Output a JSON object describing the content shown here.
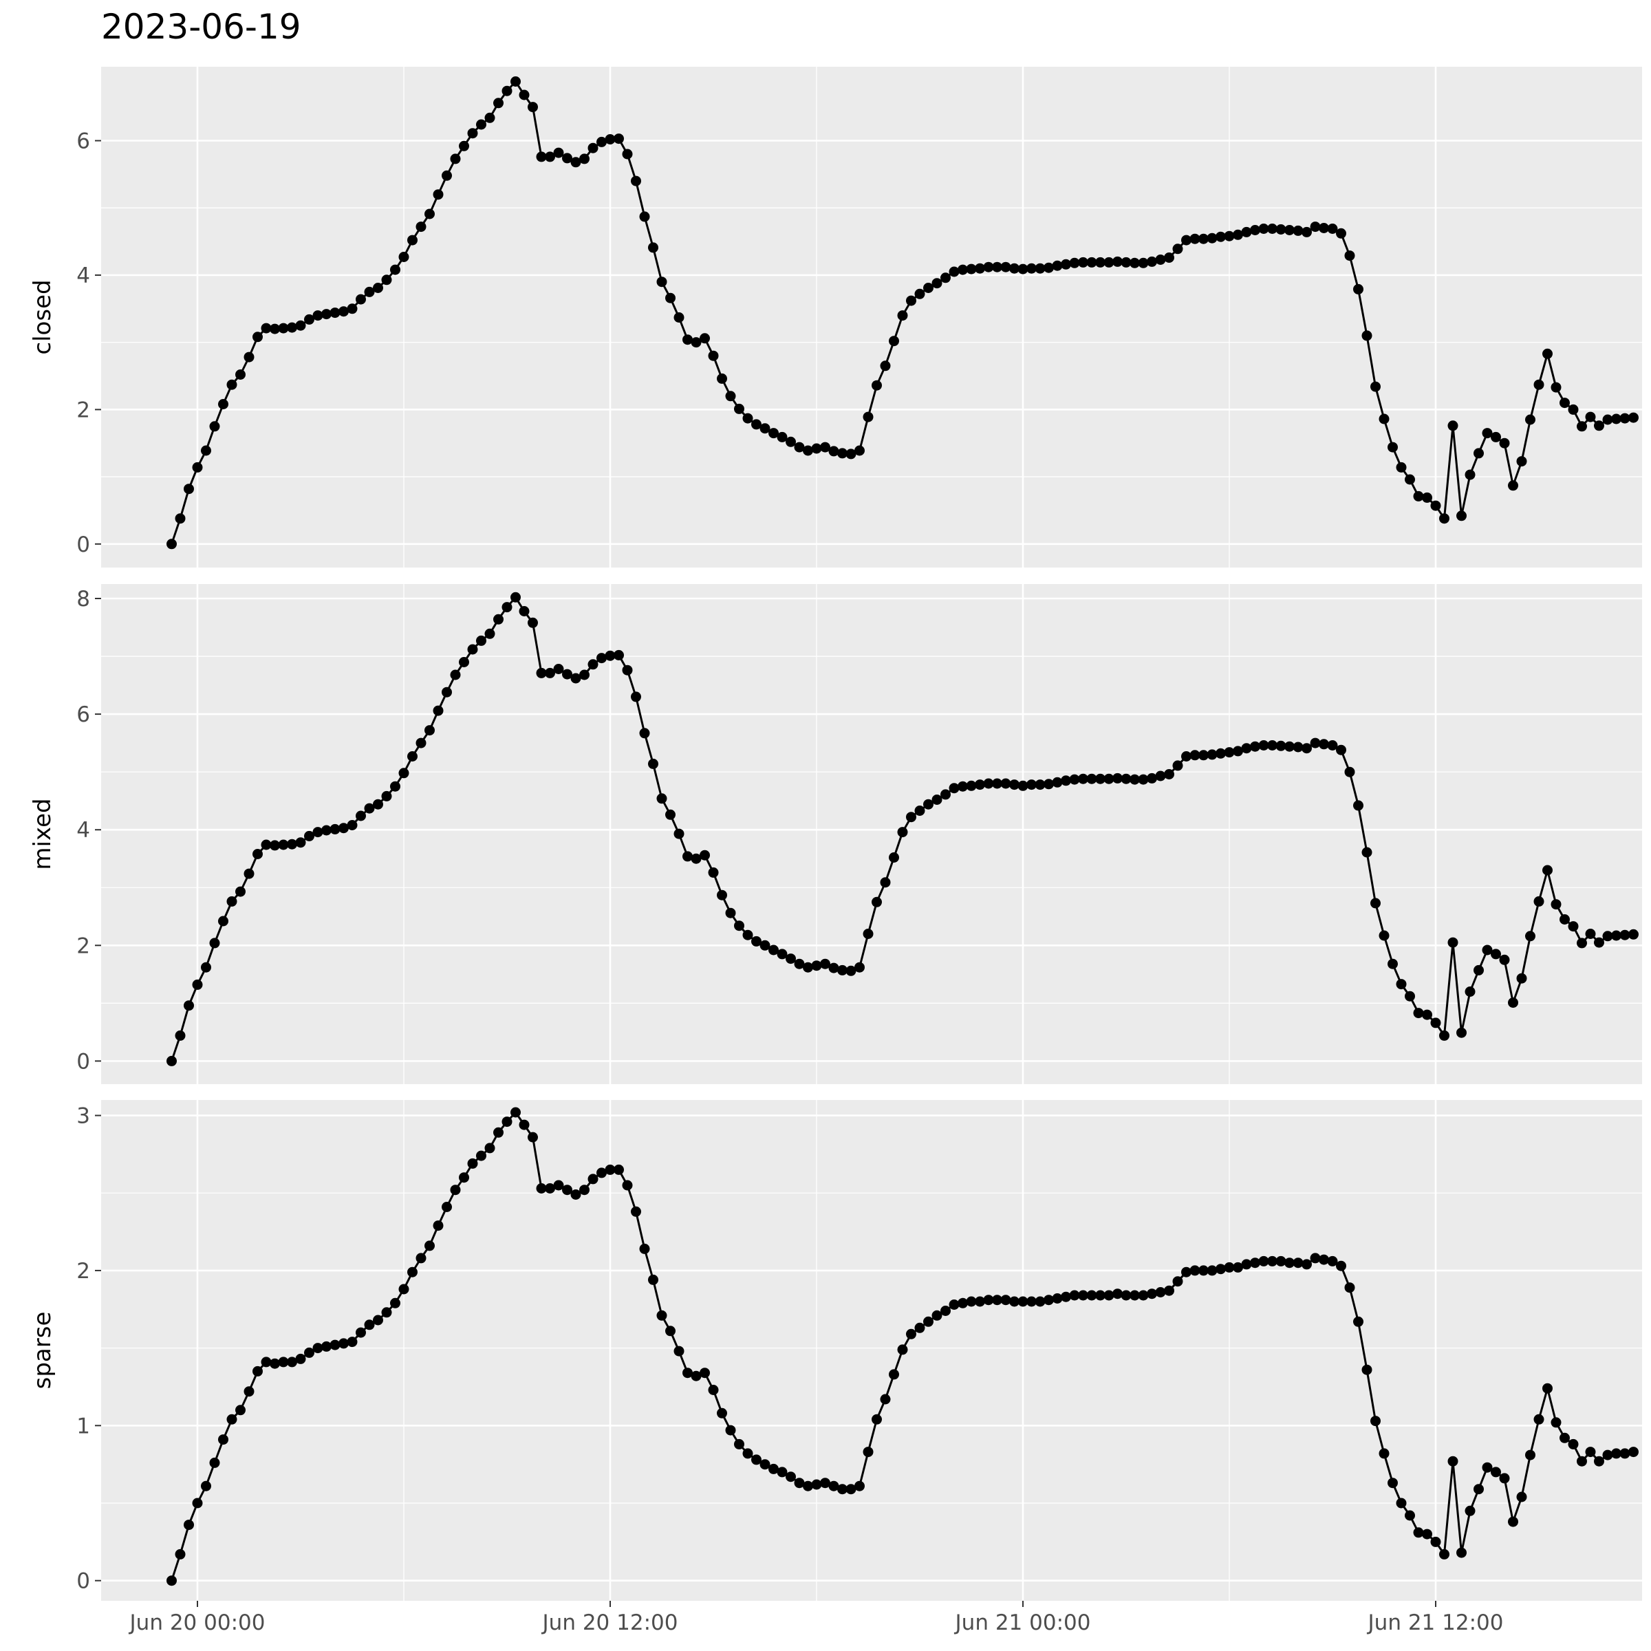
{
  "title": "2023-06-19",
  "chart_data": {
    "type": "line",
    "title": "2023-06-19",
    "xlabel": "",
    "x_tick_labels": [
      "Jun 20 00:00",
      "Jun 20 12:00",
      "Jun 21 00:00",
      "Jun 21 12:00"
    ],
    "x_ticks_hours": [
      0,
      12,
      24,
      36
    ],
    "x_start": "2023-06-19 23:15",
    "x_step_minutes": 15,
    "x_range_hours": [
      -2.8,
      42.0
    ],
    "markers": true,
    "line_color": "#000000",
    "panel_background": "#ebebeb",
    "grid": true,
    "panels": [
      {
        "ylabel": "closed",
        "ylim": [
          -0.35,
          7.1
        ],
        "yticks": [
          0,
          2,
          4,
          6
        ],
        "values": [
          0.0,
          0.38,
          0.82,
          1.14,
          1.39,
          1.75,
          2.08,
          2.37,
          2.52,
          2.78,
          3.08,
          3.21,
          3.2,
          3.21,
          3.22,
          3.25,
          3.34,
          3.4,
          3.42,
          3.44,
          3.46,
          3.5,
          3.64,
          3.75,
          3.81,
          3.93,
          4.08,
          4.27,
          4.52,
          4.72,
          4.91,
          5.2,
          5.48,
          5.73,
          5.92,
          6.11,
          6.24,
          6.34,
          6.56,
          6.74,
          6.88,
          6.68,
          6.5,
          5.76,
          5.76,
          5.82,
          5.74,
          5.68,
          5.73,
          5.89,
          5.98,
          6.02,
          6.03,
          5.8,
          5.4,
          4.87,
          4.41,
          3.9,
          3.66,
          3.37,
          3.04,
          3.0,
          3.06,
          2.8,
          2.46,
          2.2,
          2.01,
          1.87,
          1.78,
          1.72,
          1.65,
          1.59,
          1.52,
          1.44,
          1.39,
          1.42,
          1.44,
          1.38,
          1.35,
          1.34,
          1.39,
          1.89,
          2.36,
          2.65,
          3.02,
          3.4,
          3.62,
          3.72,
          3.81,
          3.88,
          3.96,
          4.05,
          4.08,
          4.09,
          4.1,
          4.12,
          4.12,
          4.12,
          4.1,
          4.09,
          4.1,
          4.1,
          4.11,
          4.14,
          4.16,
          4.18,
          4.19,
          4.19,
          4.19,
          4.19,
          4.2,
          4.19,
          4.18,
          4.18,
          4.2,
          4.23,
          4.26,
          4.39,
          4.52,
          4.54,
          4.54,
          4.55,
          4.57,
          4.58,
          4.6,
          4.64,
          4.67,
          4.69,
          4.69,
          4.68,
          4.67,
          4.66,
          4.64,
          4.72,
          4.7,
          4.69,
          4.62,
          4.29,
          3.79,
          3.1,
          2.34,
          1.86,
          1.44,
          1.14,
          0.96,
          0.71,
          0.69,
          0.57,
          0.38,
          1.76,
          0.42,
          1.03,
          1.35,
          1.65,
          1.59,
          1.5,
          0.87,
          1.23,
          1.85,
          2.37,
          2.83,
          2.33,
          2.1,
          2.0,
          1.75,
          1.89,
          1.76,
          1.85,
          1.86,
          1.87,
          1.88
        ]
      },
      {
        "ylabel": "mixed",
        "ylim": [
          -0.4,
          8.25
        ],
        "yticks": [
          0,
          2,
          4,
          6,
          8
        ],
        "values": [
          0.0,
          0.44,
          0.96,
          1.32,
          1.62,
          2.04,
          2.42,
          2.76,
          2.93,
          3.24,
          3.58,
          3.74,
          3.73,
          3.74,
          3.75,
          3.78,
          3.89,
          3.96,
          3.99,
          4.01,
          4.03,
          4.08,
          4.24,
          4.37,
          4.44,
          4.58,
          4.75,
          4.98,
          5.27,
          5.5,
          5.72,
          6.06,
          6.38,
          6.68,
          6.9,
          7.12,
          7.27,
          7.39,
          7.64,
          7.85,
          8.02,
          7.78,
          7.58,
          6.71,
          6.71,
          6.78,
          6.69,
          6.62,
          6.68,
          6.86,
          6.97,
          7.01,
          7.02,
          6.76,
          6.3,
          5.67,
          5.14,
          4.54,
          4.26,
          3.93,
          3.54,
          3.5,
          3.56,
          3.26,
          2.87,
          2.56,
          2.34,
          2.18,
          2.07,
          2.0,
          1.92,
          1.85,
          1.77,
          1.68,
          1.62,
          1.65,
          1.68,
          1.61,
          1.57,
          1.56,
          1.62,
          2.2,
          2.75,
          3.09,
          3.52,
          3.96,
          4.22,
          4.33,
          4.44,
          4.52,
          4.61,
          4.72,
          4.75,
          4.76,
          4.78,
          4.8,
          4.8,
          4.8,
          4.78,
          4.76,
          4.78,
          4.78,
          4.79,
          4.82,
          4.85,
          4.87,
          4.88,
          4.88,
          4.88,
          4.88,
          4.89,
          4.88,
          4.87,
          4.87,
          4.89,
          4.93,
          4.96,
          5.11,
          5.27,
          5.29,
          5.29,
          5.3,
          5.32,
          5.34,
          5.36,
          5.41,
          5.44,
          5.46,
          5.46,
          5.45,
          5.44,
          5.43,
          5.41,
          5.5,
          5.48,
          5.46,
          5.38,
          5.0,
          4.42,
          3.61,
          2.73,
          2.17,
          1.68,
          1.33,
          1.12,
          0.83,
          0.8,
          0.66,
          0.44,
          2.05,
          0.49,
          1.2,
          1.57,
          1.92,
          1.85,
          1.75,
          1.01,
          1.43,
          2.16,
          2.76,
          3.3,
          2.71,
          2.45,
          2.33,
          2.04,
          2.2,
          2.05,
          2.16,
          2.17,
          2.18,
          2.19
        ]
      },
      {
        "ylabel": "sparse",
        "ylim": [
          -0.13,
          3.1
        ],
        "yticks": [
          0,
          1,
          2,
          3
        ],
        "values": [
          0.0,
          0.17,
          0.36,
          0.5,
          0.61,
          0.76,
          0.91,
          1.04,
          1.1,
          1.22,
          1.35,
          1.41,
          1.4,
          1.41,
          1.41,
          1.43,
          1.47,
          1.5,
          1.51,
          1.52,
          1.53,
          1.54,
          1.6,
          1.65,
          1.68,
          1.73,
          1.79,
          1.88,
          1.99,
          2.08,
          2.16,
          2.29,
          2.41,
          2.52,
          2.6,
          2.69,
          2.74,
          2.79,
          2.89,
          2.96,
          3.02,
          2.94,
          2.86,
          2.53,
          2.53,
          2.55,
          2.52,
          2.49,
          2.52,
          2.59,
          2.63,
          2.65,
          2.65,
          2.55,
          2.38,
          2.14,
          1.94,
          1.71,
          1.61,
          1.48,
          1.34,
          1.32,
          1.34,
          1.23,
          1.08,
          0.97,
          0.88,
          0.82,
          0.78,
          0.75,
          0.72,
          0.7,
          0.67,
          0.63,
          0.61,
          0.62,
          0.63,
          0.61,
          0.59,
          0.59,
          0.61,
          0.83,
          1.04,
          1.17,
          1.33,
          1.49,
          1.59,
          1.63,
          1.67,
          1.71,
          1.74,
          1.78,
          1.79,
          1.8,
          1.8,
          1.81,
          1.81,
          1.81,
          1.8,
          1.8,
          1.8,
          1.8,
          1.81,
          1.82,
          1.83,
          1.84,
          1.84,
          1.84,
          1.84,
          1.84,
          1.85,
          1.84,
          1.84,
          1.84,
          1.85,
          1.86,
          1.87,
          1.93,
          1.99,
          2.0,
          2.0,
          2.0,
          2.01,
          2.02,
          2.02,
          2.04,
          2.05,
          2.06,
          2.06,
          2.06,
          2.05,
          2.05,
          2.04,
          2.08,
          2.07,
          2.06,
          2.03,
          1.89,
          1.67,
          1.36,
          1.03,
          0.82,
          0.63,
          0.5,
          0.42,
          0.31,
          0.3,
          0.25,
          0.17,
          0.77,
          0.18,
          0.45,
          0.59,
          0.73,
          0.7,
          0.66,
          0.38,
          0.54,
          0.81,
          1.04,
          1.24,
          1.02,
          0.92,
          0.88,
          0.77,
          0.83,
          0.77,
          0.81,
          0.82,
          0.82,
          0.83
        ]
      }
    ]
  }
}
